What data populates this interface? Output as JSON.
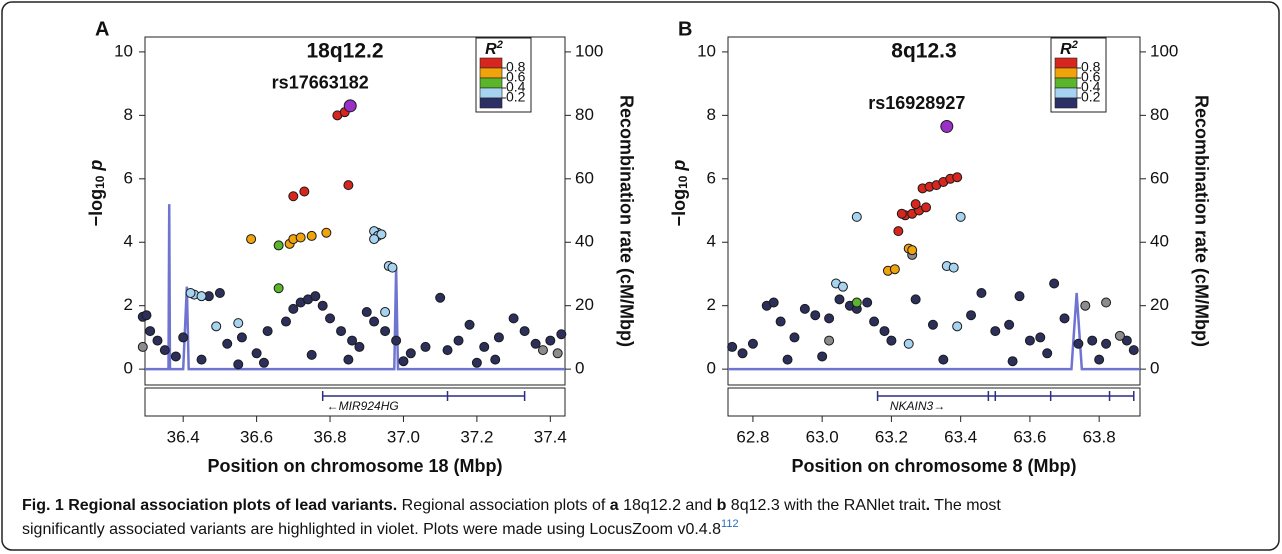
{
  "chart_data": [
    {
      "type": "scatter",
      "panel": "A",
      "title": "18q12.2",
      "annotation": "rs17663182",
      "y_label": [
        "−log",
        "10",
        "p"
      ],
      "y2_label": "Recombination rate (cM/Mbp)",
      "x_label": "Position on chromosome 18 (Mbp)",
      "xlim": [
        36.296,
        37.44
      ],
      "ylim": [
        -0.5,
        10.47
      ],
      "y2lim": [
        -5,
        104.7
      ],
      "xticks": [
        36.4,
        36.6,
        36.8,
        {
          "value": 37,
          "label": "37.0"
        },
        37.2,
        37.4
      ],
      "yticks": [
        0,
        2,
        4,
        6,
        8,
        10
      ],
      "y2ticks": [
        0,
        20,
        40,
        60,
        80,
        100
      ],
      "legend_title": [
        "R",
        "2"
      ],
      "legend_colors": [
        "#d7261e",
        "#f0a30a",
        "#5ab52b",
        "#a6d3ef",
        "#2c2f66"
      ],
      "legend_ticks": [
        0.8,
        0.6,
        0.4,
        0.2
      ],
      "recombination": {
        "axis": "y2",
        "color": "#6f74d0",
        "x": [
          36.296,
          36.36,
          36.362,
          36.364,
          36.4,
          36.41,
          36.415,
          36.975,
          36.98,
          36.985,
          37.44
        ],
        "values": [
          0,
          0,
          52,
          0,
          0,
          26,
          0,
          0,
          32,
          0,
          0
        ]
      },
      "genes": [
        {
          "label": "←MIR924HG",
          "start": 36.78,
          "end": 37.33,
          "exons": [
            36.78,
            37.12,
            37.33
          ]
        }
      ],
      "series": [
        {
          "color": "#2c2f5a",
          "x": [
            36.29,
            36.3,
            36.31,
            36.33,
            36.35,
            36.38,
            36.4,
            36.47,
            36.5,
            36.52,
            36.56,
            36.6,
            36.63,
            36.68,
            36.7,
            36.72,
            36.74,
            36.76,
            36.78,
            36.8,
            36.83,
            36.86,
            36.88,
            36.9,
            36.92,
            36.95,
            36.98,
            37.02,
            37.06,
            37.1,
            37.12,
            37.15,
            37.18,
            37.22,
            37.26,
            37.3,
            37.33,
            37.36,
            37.4,
            37.43,
            36.45,
            36.62,
            36.85,
            37.0,
            37.25,
            36.55,
            36.75,
            37.2
          ],
          "values": [
            1.65,
            1.7,
            1.2,
            0.9,
            0.6,
            0.4,
            1.0,
            2.3,
            2.4,
            0.8,
            1.0,
            0.5,
            1.2,
            1.5,
            1.9,
            2.1,
            2.2,
            2.3,
            2.0,
            1.6,
            1.2,
            0.9,
            0.7,
            1.8,
            1.5,
            1.2,
            0.9,
            0.5,
            0.7,
            2.25,
            0.6,
            0.9,
            1.4,
            0.7,
            1.0,
            1.6,
            1.2,
            0.8,
            0.9,
            1.1,
            0.3,
            0.2,
            0.3,
            0.25,
            0.3,
            0.15,
            0.45,
            0.2
          ]
        },
        {
          "color": "#8c8c8c",
          "x": [
            37.38,
            37.42,
            36.29
          ],
          "values": [
            0.6,
            0.5,
            0.7
          ]
        },
        {
          "color": "#a6d3ef",
          "x": [
            36.93,
            36.92,
            36.93,
            36.94,
            36.92,
            36.96,
            36.97,
            36.43,
            36.45,
            36.42,
            36.55,
            36.49,
            36.95
          ],
          "values": [
            4.3,
            4.35,
            4.2,
            4.25,
            4.1,
            3.25,
            3.2,
            2.35,
            2.3,
            2.4,
            1.45,
            1.35,
            1.8
          ]
        },
        {
          "color": "#5ab52b",
          "x": [
            36.66,
            36.66
          ],
          "values": [
            3.9,
            2.55
          ]
        },
        {
          "color": "#f0a30a",
          "x": [
            36.585,
            36.69,
            36.7,
            36.72,
            36.75,
            36.79
          ],
          "values": [
            4.1,
            3.95,
            4.1,
            4.15,
            4.2,
            4.3
          ]
        },
        {
          "color": "#d7261e",
          "x": [
            36.82,
            36.84,
            36.7,
            36.73,
            36.85
          ],
          "values": [
            8.0,
            8.1,
            5.45,
            5.6,
            5.8
          ]
        },
        {
          "color": "#9b30c8",
          "x": [
            36.855
          ],
          "values": [
            8.3
          ]
        }
      ]
    },
    {
      "type": "scatter",
      "panel": "B",
      "title": "8q12.3",
      "annotation": "rs16928927",
      "y_label": [
        "−log",
        "10",
        "p"
      ],
      "y2_label": "Recombination rate (cM/Mbp)",
      "x_label": "Position on chromosome 8 (Mbp)",
      "xlim": [
        62.728,
        63.918
      ],
      "ylim": [
        -0.5,
        10.47
      ],
      "y2lim": [
        -5,
        104.7
      ],
      "xticks": [
        62.8,
        {
          "value": 63,
          "label": "63.0"
        },
        63.2,
        63.4,
        63.6,
        63.8
      ],
      "yticks": [
        0,
        2,
        4,
        6,
        8,
        10
      ],
      "y2ticks": [
        0,
        20,
        40,
        60,
        80,
        100
      ],
      "legend_title": [
        "R",
        "2"
      ],
      "legend_colors": [
        "#d7261e",
        "#f0a30a",
        "#5ab52b",
        "#a6d3ef",
        "#2c2f66"
      ],
      "legend_ticks": [
        0.8,
        0.6,
        0.4,
        0.2
      ],
      "recombination": {
        "axis": "y2",
        "color": "#6f74d0",
        "x": [
          62.728,
          63.72,
          63.735,
          63.75,
          63.918
        ],
        "values": [
          0,
          0,
          24,
          0,
          0
        ]
      },
      "genes": [
        {
          "label": "NKAIN3→",
          "start": 63.16,
          "end": 63.9,
          "exons": [
            63.16,
            63.48,
            63.5,
            63.66,
            63.83,
            63.9
          ]
        }
      ],
      "series": [
        {
          "color": "#2c2f5a",
          "x": [
            62.74,
            62.77,
            62.8,
            62.84,
            62.86,
            62.88,
            62.92,
            62.95,
            62.98,
            63.02,
            63.05,
            63.08,
            63.1,
            63.13,
            63.15,
            63.18,
            63.2,
            63.27,
            63.32,
            63.43,
            63.46,
            63.5,
            63.54,
            63.57,
            63.6,
            63.63,
            63.67,
            63.7,
            63.74,
            63.78,
            63.82,
            63.88,
            63.9,
            62.9,
            63.0,
            63.35,
            63.55,
            63.8,
            63.65
          ],
          "values": [
            0.7,
            0.5,
            0.8,
            2.0,
            2.1,
            1.5,
            1.0,
            1.9,
            1.7,
            1.6,
            2.2,
            2.0,
            1.9,
            2.1,
            1.5,
            1.2,
            0.9,
            2.2,
            1.4,
            1.7,
            2.4,
            1.2,
            1.4,
            2.3,
            0.9,
            1.0,
            2.7,
            1.6,
            0.8,
            0.9,
            0.8,
            0.9,
            0.6,
            0.3,
            0.4,
            0.3,
            0.25,
            0.3,
            0.5
          ]
        },
        {
          "color": "#8c8c8c",
          "x": [
            63.26,
            63.02,
            63.76,
            63.82,
            63.86
          ],
          "values": [
            3.6,
            0.9,
            2.0,
            2.1,
            1.05
          ]
        },
        {
          "color": "#a6d3ef",
          "x": [
            63.1,
            63.4,
            63.04,
            63.06,
            63.36,
            63.38,
            63.39,
            63.25
          ],
          "values": [
            4.8,
            4.8,
            2.7,
            2.6,
            3.25,
            3.2,
            1.35,
            0.8
          ]
        },
        {
          "color": "#5ab52b",
          "x": [
            63.1
          ],
          "values": [
            2.1
          ]
        },
        {
          "color": "#f0a30a",
          "x": [
            63.19,
            63.21,
            63.25,
            63.26
          ],
          "values": [
            3.1,
            3.15,
            3.8,
            3.75
          ]
        },
        {
          "color": "#d7261e",
          "x": [
            63.22,
            63.24,
            63.26,
            63.28,
            63.3,
            63.29,
            63.31,
            63.33,
            63.35,
            63.37,
            63.39,
            63.27,
            63.23
          ],
          "values": [
            4.35,
            4.85,
            4.9,
            5.0,
            5.1,
            5.7,
            5.75,
            5.8,
            5.9,
            6.0,
            6.05,
            5.2,
            4.9
          ]
        },
        {
          "color": "#9b30c8",
          "x": [
            63.36
          ],
          "values": [
            7.65
          ]
        }
      ]
    }
  ],
  "caption": {
    "lines": [
      [
        {
          "text": "Fig. 1 Regional association plots of lead variants.",
          "bold": true
        },
        {
          "text": " Regional association plots of ",
          "bold": false
        },
        {
          "text": "a",
          "bold": true
        },
        {
          "text": " 18q12.2 and ",
          "bold": false
        },
        {
          "text": "b",
          "bold": true
        },
        {
          "text": " 8q12.3 with the RANlet trait",
          "bold": false
        },
        {
          "text": ".",
          "bold": true
        },
        {
          "text": " The most",
          "bold": false
        }
      ],
      [
        {
          "text": "significantly associated variants are highlighted in violet. Plots were made using LocusZoom v0.4.8",
          "bold": false
        },
        {
          "text": "112",
          "bold": false,
          "sup": true
        }
      ]
    ]
  }
}
